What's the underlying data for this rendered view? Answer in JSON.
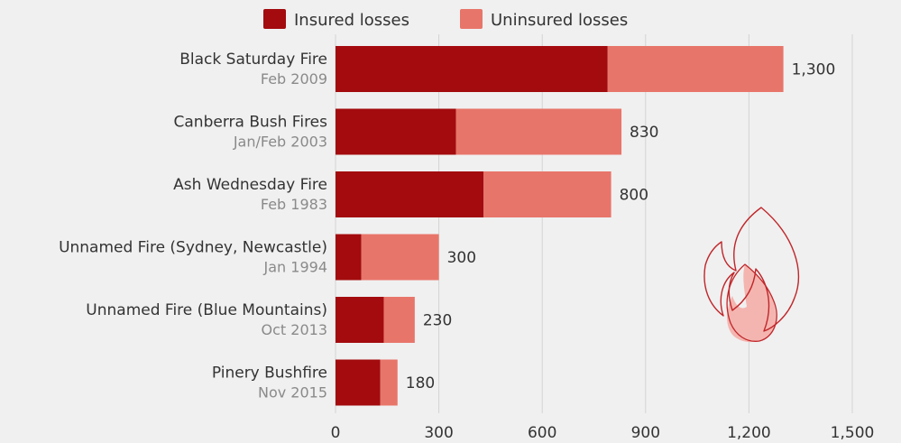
{
  "chart_data": {
    "type": "bar",
    "orientation": "horizontal",
    "stacked": true,
    "categories": [
      {
        "label": "Black Saturday Fire",
        "sublabel": "Feb 2009"
      },
      {
        "label": "Canberra Bush Fires",
        "sublabel": "Jan/Feb 2003"
      },
      {
        "label": "Ash Wednesday Fire",
        "sublabel": "Feb 1983"
      },
      {
        "label": "Unnamed Fire (Sydney, Newcastle)",
        "sublabel": "Jan 1994"
      },
      {
        "label": "Unnamed Fire (Blue Mountains)",
        "sublabel": "Oct 2013"
      },
      {
        "label": "Pinery Bushfire",
        "sublabel": "Nov 2015"
      }
    ],
    "series": [
      {
        "name": "Insured losses",
        "color": "#a30b0e",
        "values": [
          790,
          350,
          430,
          75,
          140,
          130
        ]
      },
      {
        "name": "Uninsured losses",
        "color": "#e8756a",
        "values": [
          510,
          480,
          370,
          225,
          90,
          50
        ]
      }
    ],
    "totals": [
      1300,
      830,
      800,
      300,
      230,
      180
    ],
    "total_labels": [
      "1,300",
      "830",
      "800",
      "300",
      "230",
      "180"
    ],
    "xlim": [
      0,
      1500
    ],
    "xticks": [
      0,
      300,
      600,
      900,
      1200,
      1500
    ],
    "xtick_labels": [
      "0",
      "300",
      "600",
      "900",
      "1,200",
      "1,500"
    ],
    "grid": true,
    "legend_position": "top-center"
  },
  "decoration": {
    "icon": "flame-icon",
    "outline_color": "#c0262a",
    "fill_color": "#f4b5b0"
  }
}
